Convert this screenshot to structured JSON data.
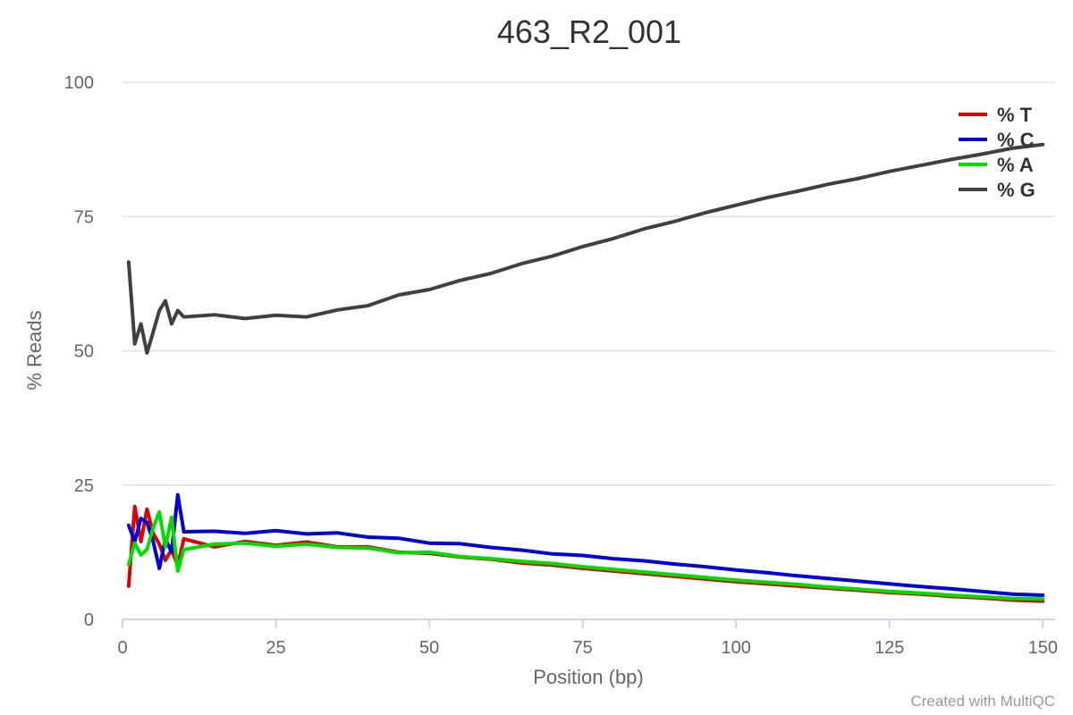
{
  "chart_data": {
    "type": "line",
    "title": "463_R2_001",
    "xlabel": "Position (bp)",
    "ylabel": "% Reads",
    "xlim": [
      0,
      152
    ],
    "ylim": [
      0,
      100
    ],
    "xticks": [
      0,
      25,
      50,
      75,
      100,
      125,
      150
    ],
    "yticks": [
      0,
      25,
      50,
      75,
      100
    ],
    "grid": true,
    "legend_position": "top-right",
    "credit": "Created with MultiQC",
    "x": [
      1,
      2,
      3,
      4,
      5,
      6,
      7,
      8,
      9,
      10,
      15,
      20,
      25,
      30,
      35,
      40,
      45,
      50,
      55,
      60,
      65,
      70,
      75,
      80,
      85,
      90,
      95,
      100,
      105,
      110,
      115,
      120,
      125,
      130,
      135,
      140,
      145,
      150
    ],
    "series": [
      {
        "name": "% T",
        "color": "#dd0000",
        "values": [
          6.2,
          21.0,
          14.5,
          20.5,
          16.0,
          14.0,
          11.0,
          13.0,
          10.0,
          15.0,
          13.5,
          14.5,
          13.8,
          14.4,
          13.5,
          13.5,
          12.5,
          12.3,
          11.6,
          11.2,
          10.5,
          10.1,
          9.5,
          9.0,
          8.5,
          8.0,
          7.5,
          7.0,
          6.6,
          6.2,
          5.8,
          5.4,
          5.0,
          4.7,
          4.3,
          4.0,
          3.6,
          3.4
        ]
      },
      {
        "name": "% C",
        "color": "#0000dd",
        "values": [
          17.5,
          14.5,
          18.8,
          18.0,
          14.5,
          9.5,
          15.0,
          12.5,
          23.2,
          16.3,
          16.4,
          16.0,
          16.5,
          15.9,
          16.1,
          15.3,
          15.1,
          14.2,
          14.1,
          13.4,
          12.9,
          12.2,
          11.9,
          11.3,
          10.9,
          10.3,
          9.8,
          9.2,
          8.7,
          8.1,
          7.6,
          7.1,
          6.6,
          6.1,
          5.7,
          5.2,
          4.7,
          4.5
        ]
      },
      {
        "name": "% A",
        "color": "#00dd00",
        "values": [
          10.2,
          14.2,
          12.0,
          13.0,
          17.0,
          20.0,
          13.5,
          19.0,
          9.0,
          13.0,
          14.0,
          14.2,
          13.6,
          14.0,
          13.4,
          13.3,
          12.4,
          12.5,
          11.7,
          11.3,
          10.8,
          10.4,
          9.8,
          9.3,
          8.8,
          8.3,
          7.8,
          7.3,
          6.9,
          6.5,
          6.0,
          5.6,
          5.2,
          4.9,
          4.5,
          4.2,
          3.9,
          3.8
        ]
      },
      {
        "name": "% G",
        "color": "#404040",
        "values": [
          66.5,
          51.3,
          55.0,
          49.6,
          53.5,
          57.5,
          59.3,
          55.0,
          57.5,
          56.3,
          56.7,
          56.0,
          56.6,
          56.3,
          57.6,
          58.4,
          60.4,
          61.4,
          63.1,
          64.4,
          66.2,
          67.6,
          69.4,
          70.9,
          72.7,
          74.1,
          75.7,
          77.1,
          78.5,
          79.7,
          81.0,
          82.1,
          83.4,
          84.5,
          85.6,
          86.6,
          87.7,
          88.4
        ]
      }
    ]
  }
}
